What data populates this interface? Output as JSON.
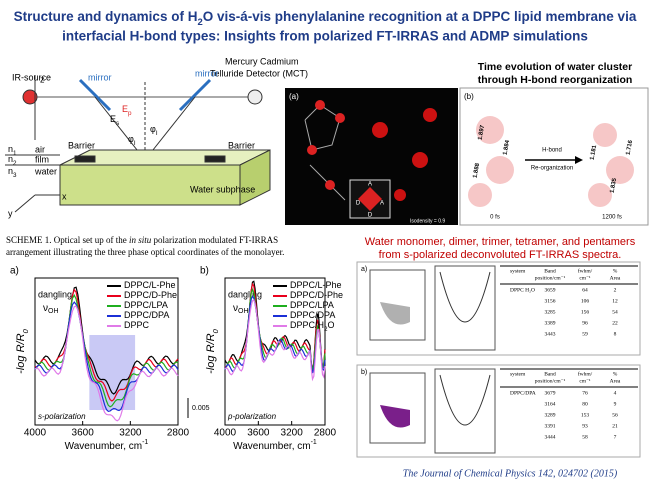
{
  "title": {
    "line1": [
      "Structure and dynamics of H",
      "2",
      "O vis-á-vis phenylalanine recognition at a DPPC lipid membrane via"
    ],
    "line2": "interfacial H-bond types: Insights from polarized FT-IRRAS and ADMP simulations"
  },
  "setup": {
    "source": "IR-source",
    "detector": [
      "Mercury Cadmium",
      "Telluride Detector (MCT)"
    ],
    "mirrors": [
      "mirror",
      "mirror"
    ],
    "fields": [
      [
        "E",
        "s"
      ],
      [
        "E",
        "p"
      ]
    ],
    "angles": [
      [
        "φ",
        "I"
      ],
      [
        "φ",
        "I"
      ]
    ],
    "axes": [
      "z",
      "x",
      "y"
    ],
    "barriers": [
      "Barrier",
      "Barrier"
    ],
    "indices": [
      [
        "n",
        "1"
      ],
      [
        "n",
        "2"
      ],
      [
        "n",
        "3"
      ]
    ],
    "phases": [
      "air",
      "film",
      "water"
    ],
    "subphase": "Water subphase"
  },
  "caption": {
    "line1": [
      "SCHEME 1.  Optical set up of the ",
      "in situ",
      " polarization modulated FT-IRRAS"
    ],
    "line2": "arrangement illustrating the three phase optical coordinates of the monolayer."
  },
  "simulation": {
    "panel_a": "(a)",
    "isodensity": "Isodensity = 0.9",
    "sites": [
      "A",
      "D",
      "A",
      "D"
    ],
    "heading": [
      "Time evolution of water cluster",
      "through H-bond reorganization"
    ],
    "panel_b": "(b)",
    "arrow": [
      "H-bond",
      "Re-organization"
    ],
    "times": [
      "0 fs",
      "1200 fs"
    ],
    "bonds_start": [
      "1.897",
      "1.884",
      "1.888"
    ],
    "bonds_end": [
      "1.181",
      "1.716",
      "1.835"
    ]
  },
  "spectra": [
    {
      "panel": "a)",
      "legend": [
        {
          "name": "DPPC/L-Phe",
          "color": "#000000"
        },
        {
          "name": "DPPC/D-Phe",
          "color": "#e8001c"
        },
        {
          "name": "DPPC/LPA",
          "color": "#1fae1f"
        },
        {
          "name": "DPPC/DPA",
          "color": "#1b2fd6"
        },
        {
          "name": "DPPC",
          "color": "#e07ae8"
        }
      ],
      "annotation": [
        "dangling",
        "ν",
        "OH"
      ],
      "polarization": "s-polarization",
      "scale": "0.005",
      "ylabel": [
        "-log R/R",
        "0"
      ],
      "xticks": [
        "4000",
        "3600",
        "3200",
        "2800"
      ],
      "xlabel": [
        "Wavenumber, cm",
        "-1"
      ],
      "highlight": "#c9c9f5"
    },
    {
      "panel": "b)",
      "legend": [
        {
          "name": "DPPC/L-Phe",
          "color": "#000000"
        },
        {
          "name": "DPPC/D-Phe",
          "color": "#e8001c"
        },
        {
          "name": "DPPC/LPA",
          "color": "#1fae1f"
        },
        {
          "name": "DPPC/DPA",
          "color": "#1b2fd6"
        },
        {
          "name": "DPPC/H",
          "color": "#e07ae8",
          "sub": "2",
          "tail": "O"
        }
      ],
      "annotation": [
        "dangling",
        "ν",
        "OH"
      ],
      "polarization": "p-polarization",
      "ylabel": [
        "-log R/R",
        "0"
      ],
      "xticks": [
        "4000",
        "3600",
        "3200",
        "2800"
      ],
      "xlabel": [
        "Wavenumber, cm",
        "-1"
      ]
    }
  ],
  "deconvolution": {
    "heading": [
      "Water monomer, dimer, trimer, tetramer, and pentamers",
      "from s-polarized deconvoluted FT-IRRAS spectra."
    ],
    "tables": [
      {
        "panel": "a)",
        "header": [
          [
            "system"
          ],
          [
            "Band",
            "position/cm⁻¹"
          ],
          [
            "fwhm/",
            "cm⁻¹"
          ],
          [
            "%",
            "Area"
          ]
        ],
        "system": "DPPC H₂O",
        "rows": [
          [
            "3659",
            "64",
            "2"
          ],
          [
            "3156",
            "106",
            "12"
          ],
          [
            "3285",
            "156",
            "54"
          ],
          [
            "3389",
            "96",
            "22"
          ],
          [
            "3443",
            "59",
            "8"
          ]
        ],
        "fill": "#b0b0b0"
      },
      {
        "panel": "b)",
        "header": [
          [
            "system"
          ],
          [
            "Band",
            "position/cm⁻¹"
          ],
          [
            "fwhm/",
            "cm⁻¹"
          ],
          [
            "%",
            "Area"
          ]
        ],
        "system": "DPPC/DPA",
        "rows": [
          [
            "3679",
            "76",
            "4"
          ],
          [
            "3164",
            "80",
            "9"
          ],
          [
            "3289",
            "153",
            "56"
          ],
          [
            "3391",
            "93",
            "21"
          ],
          [
            "3444",
            "58",
            "7"
          ]
        ],
        "fill": "#7a1f8a"
      }
    ]
  },
  "citation": "The Journal of Chemical Physics 142, 024702 (2015)"
}
